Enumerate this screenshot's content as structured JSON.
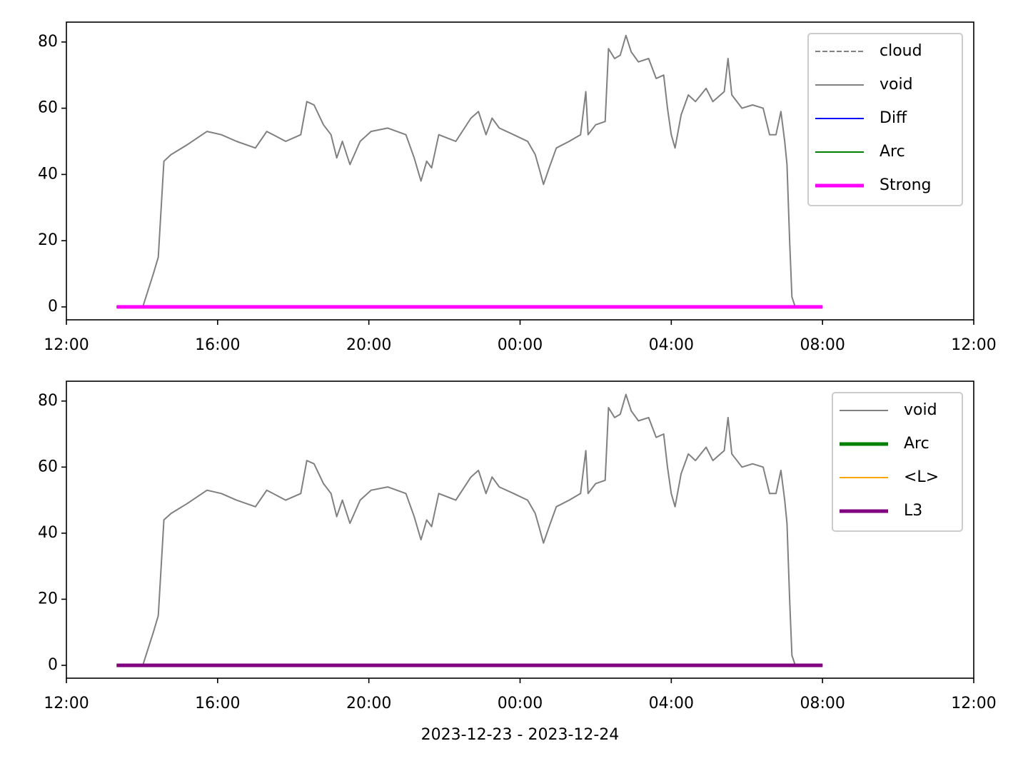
{
  "chart_data": [
    {
      "type": "line",
      "xlim": [
        0,
        24
      ],
      "ylim": [
        -3.9,
        86
      ],
      "xticks": [
        {
          "value": 0,
          "label": "12:00"
        },
        {
          "value": 4,
          "label": "16:00"
        },
        {
          "value": 8,
          "label": "20:00"
        },
        {
          "value": 12,
          "label": "00:00"
        },
        {
          "value": 16,
          "label": "04:00"
        },
        {
          "value": 20,
          "label": "08:00"
        },
        {
          "value": 24,
          "label": "12:00"
        }
      ],
      "yticks": [
        0,
        20,
        40,
        60,
        80
      ],
      "legend": "upper right",
      "series": [
        {
          "name": "cloud",
          "color": "#808080",
          "linestyle": "dashed",
          "linewidth": 1,
          "x": [
            1.33,
            20
          ],
          "values": [
            0,
            0
          ]
        },
        {
          "name": "void",
          "color": "#808080",
          "linewidth": 1,
          "x": [
            1.33,
            2.02,
            2.3,
            2.43,
            2.58,
            2.77,
            3.2,
            3.72,
            4.1,
            4.5,
            5.0,
            5.3,
            5.8,
            6.2,
            6.36,
            6.55,
            6.8,
            7.0,
            7.15,
            7.3,
            7.5,
            7.77,
            8.06,
            8.5,
            8.98,
            9.2,
            9.38,
            9.53,
            9.66,
            9.85,
            10.3,
            10.7,
            10.9,
            11.1,
            11.26,
            11.45,
            11.83,
            12.2,
            12.4,
            12.5,
            12.62,
            12.77,
            12.96,
            13.3,
            13.6,
            13.74,
            13.8,
            14.0,
            14.25,
            14.34,
            14.5,
            14.65,
            14.8,
            14.94,
            15.13,
            15.4,
            15.6,
            15.8,
            15.9,
            16.0,
            16.1,
            16.26,
            16.45,
            16.64,
            16.92,
            17.1,
            17.4,
            17.5,
            17.6,
            17.87,
            18.15,
            18.43,
            18.6,
            18.77,
            18.9,
            19.0,
            19.06,
            19.13,
            19.19,
            19.28,
            20.0
          ],
          "values": [
            0,
            0,
            10,
            15,
            44,
            46,
            49,
            53,
            52,
            50,
            48,
            53,
            50,
            52,
            62,
            61,
            55,
            52,
            45,
            50,
            43,
            50,
            53,
            54,
            52,
            45,
            38,
            44,
            42,
            52,
            50,
            57,
            59,
            52,
            57,
            54,
            52,
            50,
            46,
            42,
            37,
            42,
            48,
            50,
            52,
            65,
            52,
            55,
            56,
            78,
            75,
            76,
            82,
            77,
            74,
            75,
            69,
            70,
            60,
            52,
            48,
            58,
            64,
            62,
            66,
            62,
            65,
            75,
            64,
            60,
            61,
            60,
            52,
            52,
            59,
            50,
            43,
            20,
            3,
            0,
            0
          ]
        },
        {
          "name": "Diff",
          "color": "#0000ff",
          "linewidth": 1,
          "x": [
            1.33,
            20
          ],
          "values": [
            0,
            0
          ]
        },
        {
          "name": "Arc",
          "color": "#008000",
          "linewidth": 1,
          "x": [
            1.33,
            20
          ],
          "values": [
            0,
            0
          ]
        },
        {
          "name": "Strong",
          "color": "#ff00ff",
          "linewidth": 2.5,
          "x": [
            1.33,
            20
          ],
          "values": [
            0,
            0
          ]
        }
      ]
    },
    {
      "type": "line",
      "xlim": [
        0,
        24
      ],
      "ylim": [
        -3.9,
        86
      ],
      "xlabel": "2023-12-23 - 2023-12-24",
      "xticks": [
        {
          "value": 0,
          "label": "12:00"
        },
        {
          "value": 4,
          "label": "16:00"
        },
        {
          "value": 8,
          "label": "20:00"
        },
        {
          "value": 12,
          "label": "00:00"
        },
        {
          "value": 16,
          "label": "04:00"
        },
        {
          "value": 20,
          "label": "08:00"
        },
        {
          "value": 24,
          "label": "12:00"
        }
      ],
      "yticks": [
        0,
        20,
        40,
        60,
        80
      ],
      "legend": "upper right",
      "series": [
        {
          "name": "void",
          "color": "#808080",
          "linewidth": 1,
          "x": [
            1.33,
            2.02,
            2.3,
            2.43,
            2.58,
            2.77,
            3.2,
            3.72,
            4.1,
            4.5,
            5.0,
            5.3,
            5.8,
            6.2,
            6.36,
            6.55,
            6.8,
            7.0,
            7.15,
            7.3,
            7.5,
            7.77,
            8.06,
            8.5,
            8.98,
            9.2,
            9.38,
            9.53,
            9.66,
            9.85,
            10.3,
            10.7,
            10.9,
            11.1,
            11.26,
            11.45,
            11.83,
            12.2,
            12.4,
            12.5,
            12.62,
            12.77,
            12.96,
            13.3,
            13.6,
            13.74,
            13.8,
            14.0,
            14.25,
            14.34,
            14.5,
            14.65,
            14.8,
            14.94,
            15.13,
            15.4,
            15.6,
            15.8,
            15.9,
            16.0,
            16.1,
            16.26,
            16.45,
            16.64,
            16.92,
            17.1,
            17.4,
            17.5,
            17.6,
            17.87,
            18.15,
            18.43,
            18.6,
            18.77,
            18.9,
            19.0,
            19.06,
            19.13,
            19.19,
            19.28,
            20.0
          ],
          "values": [
            0,
            0,
            10,
            15,
            44,
            46,
            49,
            53,
            52,
            50,
            48,
            53,
            50,
            52,
            62,
            61,
            55,
            52,
            45,
            50,
            43,
            50,
            53,
            54,
            52,
            45,
            38,
            44,
            42,
            52,
            50,
            57,
            59,
            52,
            57,
            54,
            52,
            50,
            46,
            42,
            37,
            42,
            48,
            50,
            52,
            65,
            52,
            55,
            56,
            78,
            75,
            76,
            82,
            77,
            74,
            75,
            69,
            70,
            60,
            52,
            48,
            58,
            64,
            62,
            66,
            62,
            65,
            75,
            64,
            60,
            61,
            60,
            52,
            52,
            59,
            50,
            43,
            20,
            3,
            0,
            0
          ]
        },
        {
          "name": "Arc",
          "color": "#008000",
          "linewidth": 2.5,
          "x": [
            1.33,
            20
          ],
          "values": [
            0,
            0
          ]
        },
        {
          "name": "<L>",
          "color": "#ffa500",
          "linewidth": 1,
          "x": [
            1.33,
            20
          ],
          "values": [
            0,
            0
          ]
        },
        {
          "name": "L3",
          "color": "#800080",
          "linewidth": 2.5,
          "x": [
            1.33,
            20
          ],
          "values": [
            0,
            0
          ]
        }
      ]
    }
  ]
}
